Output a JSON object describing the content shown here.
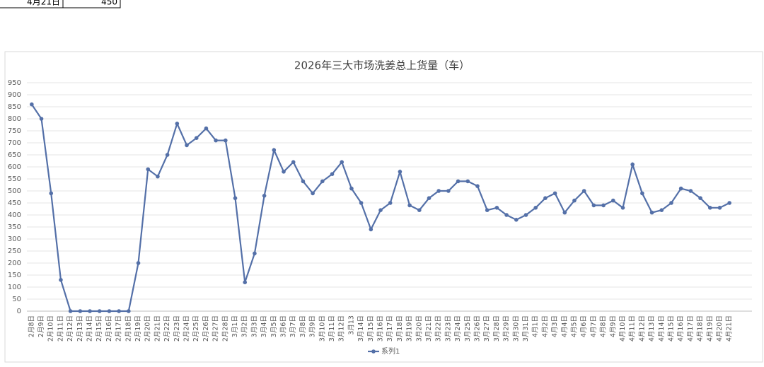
{
  "cells": [
    "4月21日",
    "450"
  ],
  "chart_data": {
    "type": "line",
    "title": "2026年三大市场洗姜总上货量（车）",
    "categories": [
      "2月8日",
      "2月9日",
      "2月10日",
      "2月11日",
      "2月12日",
      "2月13日",
      "2月14日",
      "2月15日",
      "2月16日",
      "2月17日",
      "2月18日",
      "2月19日",
      "2月20日",
      "2月21日",
      "2月22日",
      "2月23日",
      "2月24日",
      "2月25日",
      "2月26日",
      "2月27日",
      "2月28日",
      "3月1日",
      "3月2日",
      "3月3日",
      "3月4日",
      "3月5日",
      "3月6日",
      "3月7日",
      "3月8日",
      "3月9日",
      "3月10日",
      "3月11日",
      "3月12日",
      "3月13",
      "3月14日",
      "3月15日",
      "3月16日",
      "3月17日",
      "3月18日",
      "3月19日",
      "3月20日",
      "3月21日",
      "3月22日",
      "3月23日",
      "3月24日",
      "3月25日",
      "3月26日",
      "3月27日",
      "3月28日",
      "3月29日",
      "3月30日",
      "3月31日",
      "4月1日",
      "4月2日",
      "4月3日",
      "4月4日",
      "4月5日",
      "4月6日",
      "4月7日",
      "4月8日",
      "4月9日",
      "4月10日",
      "4月11日",
      "4月12日",
      "4月13日",
      "4月14日",
      "4月15日",
      "4月16日",
      "4月17日",
      "4月18日",
      "4月19日",
      "4月20日",
      "4月21日"
    ],
    "series": [
      {
        "name": "系列1",
        "color": "#5470a8",
        "values": [
          860,
          800,
          490,
          130,
          0,
          0,
          0,
          0,
          0,
          0,
          0,
          200,
          590,
          560,
          650,
          780,
          690,
          720,
          760,
          710,
          710,
          470,
          120,
          240,
          480,
          670,
          580,
          620,
          540,
          490,
          540,
          570,
          620,
          510,
          450,
          340,
          420,
          450,
          580,
          440,
          420,
          470,
          500,
          500,
          540,
          540,
          520,
          420,
          430,
          400,
          380,
          400,
          430,
          470,
          490,
          410,
          460,
          500,
          440,
          440,
          460,
          430,
          610,
          490,
          410,
          420,
          450,
          510,
          500,
          470,
          430,
          430,
          450
        ]
      }
    ],
    "ylim": [
      0,
      950
    ],
    "yticks": [
      0,
      50,
      100,
      150,
      200,
      250,
      300,
      350,
      400,
      450,
      500,
      550,
      600,
      650,
      700,
      750,
      800,
      850,
      900,
      950
    ],
    "grid": true,
    "legend": "bottom"
  }
}
